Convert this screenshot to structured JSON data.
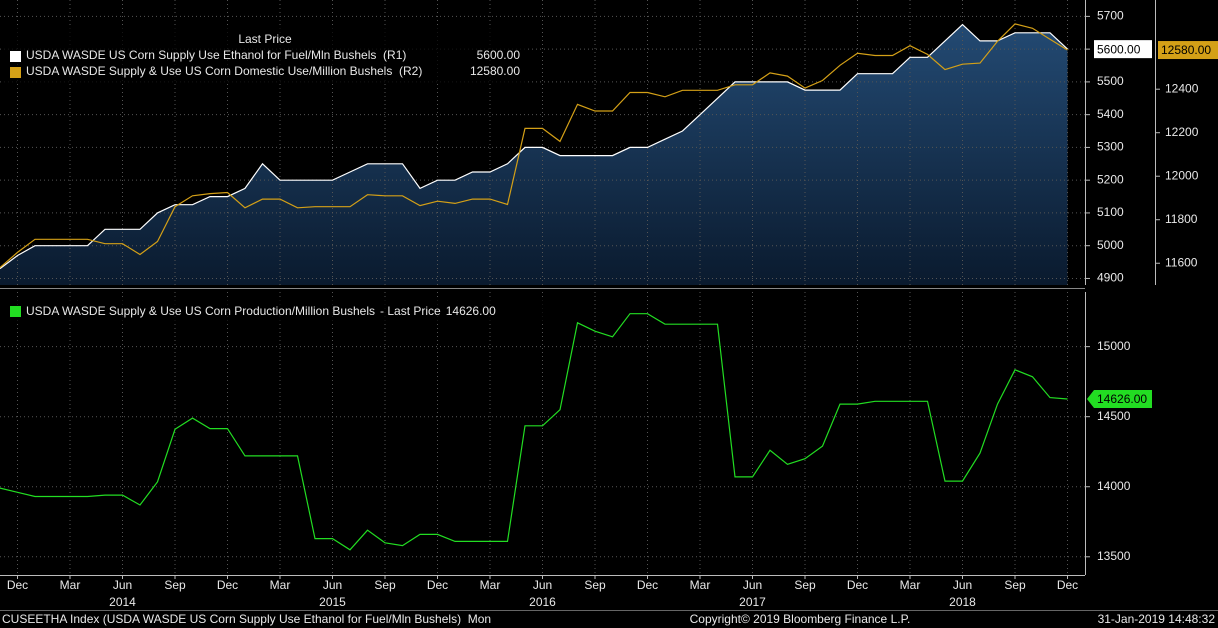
{
  "chart_data": [
    {
      "type": "line",
      "legend_title": "Last Price",
      "x": [
        "2013-11",
        "2013-12",
        "2014-01",
        "2014-02",
        "2014-03",
        "2014-04",
        "2014-05",
        "2014-06",
        "2014-07",
        "2014-08",
        "2014-09",
        "2014-10",
        "2014-11",
        "2014-12",
        "2015-01",
        "2015-02",
        "2015-03",
        "2015-04",
        "2015-05",
        "2015-06",
        "2015-07",
        "2015-08",
        "2015-09",
        "2015-10",
        "2015-11",
        "2015-12",
        "2016-01",
        "2016-02",
        "2016-03",
        "2016-04",
        "2016-05",
        "2016-06",
        "2016-07",
        "2016-08",
        "2016-09",
        "2016-10",
        "2016-11",
        "2016-12",
        "2017-01",
        "2017-02",
        "2017-03",
        "2017-04",
        "2017-05",
        "2017-06",
        "2017-07",
        "2017-08",
        "2017-09",
        "2017-10",
        "2017-11",
        "2017-12",
        "2018-01",
        "2018-02",
        "2018-03",
        "2018-04",
        "2018-05",
        "2018-06",
        "2018-07",
        "2018-08",
        "2018-09",
        "2018-10",
        "2018-11",
        "2018-12"
      ],
      "xlim": [
        "2013-11",
        "2019-01"
      ],
      "ylim": [
        4880,
        5750
      ],
      "yticks": [
        4900,
        5000,
        5100,
        5200,
        5300,
        5400,
        5500,
        5600,
        5700
      ],
      "y2lim": [
        11500,
        12810
      ],
      "y2ticks": [
        11600,
        11800,
        12000,
        12200,
        12400
      ],
      "grid": true,
      "series": [
        {
          "name": "USDA WASDE US Corn Supply Use Ethanol for Fuel/Mln Bushels  (R1)",
          "color": "#ffffff",
          "area": true,
          "axis": "y",
          "values": [
            4930,
            4970,
            5000,
            5000,
            5000,
            5000,
            5050,
            5050,
            5050,
            5100,
            5125,
            5125,
            5150,
            5150,
            5175,
            5250,
            5200,
            5200,
            5200,
            5200,
            5225,
            5250,
            5250,
            5250,
            5175,
            5200,
            5200,
            5225,
            5225,
            5250,
            5300,
            5300,
            5275,
            5275,
            5275,
            5275,
            5300,
            5300,
            5325,
            5350,
            5400,
            5450,
            5500,
            5500,
            5500,
            5500,
            5475,
            5475,
            5475,
            5525,
            5525,
            5525,
            5575,
            5575,
            5625,
            5675,
            5625,
            5625,
            5650,
            5650,
            5650,
            5600
          ],
          "value_labels": [
            null,
            null,
            null,
            null,
            null,
            null,
            null,
            null,
            null,
            null,
            null,
            null,
            null,
            null,
            null,
            null,
            null,
            null,
            null,
            null,
            null,
            null,
            null,
            null,
            null,
            null,
            null,
            null,
            null,
            null,
            null,
            null,
            null,
            null,
            null,
            null,
            null,
            null,
            null,
            null,
            null,
            null,
            null,
            null,
            null,
            null,
            null,
            null,
            null,
            null,
            null,
            null,
            null,
            null,
            null,
            null,
            null,
            null,
            null,
            null,
            null,
            "5600.00"
          ]
        },
        {
          "name": "USDA WASDE Supply & Use US Corn Domestic Use/Million Bushels  (R2)",
          "color": "#d4a017",
          "axis": "y2",
          "values": [
            11580,
            11650,
            11710,
            11710,
            11710,
            11710,
            11690,
            11690,
            11640,
            11700,
            11860,
            11910,
            11920,
            11925,
            11855,
            11895,
            11895,
            11855,
            11860,
            11860,
            11860,
            11915,
            11910,
            11910,
            11865,
            11885,
            11875,
            11895,
            11895,
            11870,
            12220,
            12220,
            12160,
            12330,
            12300,
            12300,
            12385,
            12385,
            12365,
            12395,
            12395,
            12395,
            12420,
            12420,
            12475,
            12460,
            12405,
            12440,
            12510,
            12565,
            12555,
            12555,
            12600,
            12560,
            12490,
            12515,
            12520,
            12620,
            12700,
            12680,
            12630,
            12580
          ],
          "value_labels": [
            null,
            null,
            null,
            null,
            null,
            null,
            null,
            null,
            null,
            null,
            null,
            null,
            null,
            null,
            null,
            null,
            null,
            null,
            null,
            null,
            null,
            null,
            null,
            null,
            null,
            null,
            null,
            null,
            null,
            null,
            null,
            null,
            null,
            null,
            null,
            null,
            null,
            null,
            null,
            null,
            null,
            null,
            null,
            null,
            null,
            null,
            null,
            null,
            null,
            null,
            null,
            null,
            null,
            null,
            null,
            null,
            null,
            null,
            null,
            null,
            null,
            "12580.00"
          ]
        }
      ]
    },
    {
      "type": "line",
      "legend_suffix": "- Last Price",
      "x": [
        "2013-11",
        "2013-12",
        "2014-01",
        "2014-02",
        "2014-03",
        "2014-04",
        "2014-05",
        "2014-06",
        "2014-07",
        "2014-08",
        "2014-09",
        "2014-10",
        "2014-11",
        "2014-12",
        "2015-01",
        "2015-02",
        "2015-03",
        "2015-04",
        "2015-05",
        "2015-06",
        "2015-07",
        "2015-08",
        "2015-09",
        "2015-10",
        "2015-11",
        "2015-12",
        "2016-01",
        "2016-02",
        "2016-03",
        "2016-04",
        "2016-05",
        "2016-06",
        "2016-07",
        "2016-08",
        "2016-09",
        "2016-10",
        "2016-11",
        "2016-12",
        "2017-01",
        "2017-02",
        "2017-03",
        "2017-04",
        "2017-05",
        "2017-06",
        "2017-07",
        "2017-08",
        "2017-09",
        "2017-10",
        "2017-11",
        "2017-12",
        "2018-01",
        "2018-02",
        "2018-03",
        "2018-04",
        "2018-05",
        "2018-06",
        "2018-07",
        "2018-08",
        "2018-09",
        "2018-10",
        "2018-11",
        "2018-12"
      ],
      "xlim": [
        "2013-11",
        "2019-01"
      ],
      "xticks": [
        {
          "value": "2013-12",
          "label": "Dec"
        },
        {
          "value": "2014-03",
          "label": "Mar"
        },
        {
          "value": "2014-06",
          "label": "Jun"
        },
        {
          "value": "2014-09",
          "label": "Sep"
        },
        {
          "value": "2014-12",
          "label": "Dec"
        },
        {
          "value": "2015-03",
          "label": "Mar"
        },
        {
          "value": "2015-06",
          "label": "Jun"
        },
        {
          "value": "2015-09",
          "label": "Sep"
        },
        {
          "value": "2015-12",
          "label": "Dec"
        },
        {
          "value": "2016-03",
          "label": "Mar"
        },
        {
          "value": "2016-06",
          "label": "Jun"
        },
        {
          "value": "2016-09",
          "label": "Sep"
        },
        {
          "value": "2016-12",
          "label": "Dec"
        },
        {
          "value": "2017-03",
          "label": "Mar"
        },
        {
          "value": "2017-06",
          "label": "Jun"
        },
        {
          "value": "2017-09",
          "label": "Sep"
        },
        {
          "value": "2017-12",
          "label": "Dec"
        },
        {
          "value": "2018-03",
          "label": "Mar"
        },
        {
          "value": "2018-06",
          "label": "Jun"
        },
        {
          "value": "2018-09",
          "label": "Sep"
        },
        {
          "value": "2018-12",
          "label": "Dec"
        }
      ],
      "year_ticks": [
        {
          "value": "2014-06",
          "label": "2014"
        },
        {
          "value": "2015-06",
          "label": "2015"
        },
        {
          "value": "2016-06",
          "label": "2016"
        },
        {
          "value": "2017-06",
          "label": "2017"
        },
        {
          "value": "2018-06",
          "label": "2018"
        }
      ],
      "ylim": [
        13370,
        15390
      ],
      "yticks": [
        13500,
        14000,
        14500,
        15000
      ],
      "grid": true,
      "series": [
        {
          "name": "USDA WASDE Supply & Use US Corn Production/Million Bushels",
          "color": "#22dd22",
          "axis": "y",
          "values": [
            13990,
            13960,
            13930,
            13930,
            13930,
            13930,
            13940,
            13940,
            13870,
            14035,
            14410,
            14490,
            14415,
            14415,
            14220,
            14220,
            14220,
            14220,
            13630,
            13630,
            13550,
            13690,
            13600,
            13580,
            13660,
            13660,
            13610,
            13610,
            13610,
            13610,
            14435,
            14435,
            14550,
            15170,
            15110,
            15070,
            15235,
            15235,
            15160,
            15160,
            15160,
            15160,
            14070,
            14070,
            14260,
            14160,
            14200,
            14290,
            14590,
            14590,
            14610,
            14610,
            14610,
            14610,
            14040,
            14040,
            14240,
            14590,
            14835,
            14785,
            14636,
            14626
          ],
          "value_labels": [
            null,
            null,
            null,
            null,
            null,
            null,
            null,
            null,
            null,
            null,
            null,
            null,
            null,
            null,
            null,
            null,
            null,
            null,
            null,
            null,
            null,
            null,
            null,
            null,
            null,
            null,
            null,
            null,
            null,
            null,
            null,
            null,
            null,
            null,
            null,
            null,
            null,
            null,
            null,
            null,
            null,
            null,
            null,
            null,
            null,
            null,
            null,
            null,
            null,
            null,
            null,
            null,
            null,
            null,
            null,
            null,
            null,
            null,
            null,
            null,
            null,
            "14626.00"
          ]
        }
      ]
    }
  ],
  "footer": {
    "left": "CUSEETHA Index (USDA WASDE US Corn Supply Use Ethanol for Fuel/Mln Bushels)  Mon",
    "center": "Copyright© 2019 Bloomberg Finance L.P.",
    "right": "31-Jan-2019 14:48:32"
  }
}
